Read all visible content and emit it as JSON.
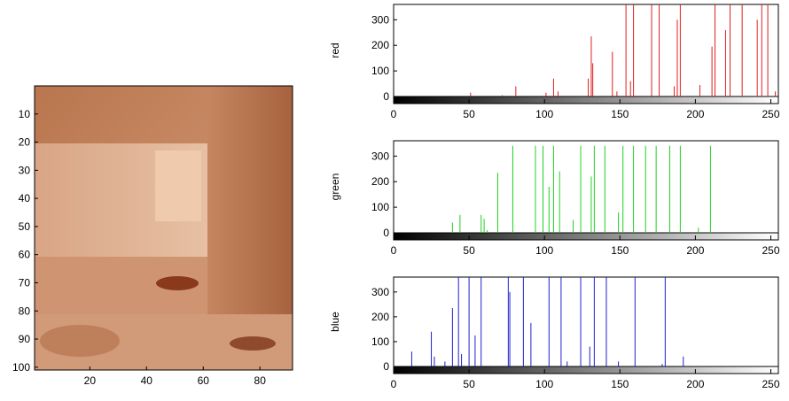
{
  "chart_data": [
    {
      "type": "image",
      "xlim": [
        0.5,
        91.5
      ],
      "ylim": [
        0,
        101
      ],
      "xticks": [
        20,
        40,
        60,
        80
      ],
      "yticks": [
        10,
        20,
        30,
        40,
        50,
        60,
        70,
        80,
        90,
        100
      ]
    },
    {
      "type": "bar",
      "ylabel": "red",
      "color": "#e02020",
      "xlim": [
        0,
        255
      ],
      "ylim": [
        0,
        360
      ],
      "xticks": [
        0,
        50,
        100,
        150,
        200,
        250
      ],
      "yticks": [
        0,
        100,
        200,
        300
      ],
      "x": [
        51,
        72,
        81,
        101,
        106,
        109,
        129,
        131,
        132,
        145,
        148,
        154,
        157,
        159,
        171,
        176,
        186,
        188,
        190,
        203,
        211,
        213,
        220,
        223,
        231,
        241,
        244,
        248,
        253
      ],
      "values": [
        15,
        5,
        40,
        15,
        70,
        20,
        70,
        235,
        130,
        175,
        20,
        360,
        60,
        360,
        360,
        360,
        40,
        300,
        360,
        45,
        195,
        360,
        260,
        360,
        360,
        300,
        360,
        360,
        20
      ]
    },
    {
      "type": "bar",
      "ylabel": "green",
      "color": "#20d020",
      "xlim": [
        0,
        255
      ],
      "ylim": [
        0,
        360
      ],
      "xticks": [
        0,
        50,
        100,
        150,
        200,
        250
      ],
      "yticks": [
        0,
        100,
        200,
        300
      ],
      "x": [
        39,
        44,
        58,
        60,
        62,
        69,
        79,
        94,
        99,
        103,
        106,
        110,
        119,
        124,
        131,
        133,
        140,
        149,
        152,
        159,
        167,
        174,
        183,
        190,
        202,
        210
      ],
      "values": [
        40,
        70,
        70,
        55,
        10,
        235,
        340,
        340,
        340,
        180,
        340,
        240,
        50,
        340,
        220,
        340,
        340,
        80,
        340,
        340,
        340,
        340,
        340,
        340,
        20,
        340
      ]
    },
    {
      "type": "bar",
      "ylabel": "blue",
      "color": "#2020d0",
      "xlim": [
        0,
        255
      ],
      "ylim": [
        0,
        360
      ],
      "xticks": [
        0,
        50,
        100,
        150,
        200,
        250
      ],
      "yticks": [
        0,
        100,
        200,
        300
      ],
      "x": [
        12,
        25,
        27,
        34,
        39,
        43,
        45,
        50,
        54,
        58,
        76,
        77,
        86,
        91,
        103,
        111,
        115,
        124,
        130,
        133,
        141,
        149,
        160,
        178,
        180,
        192
      ],
      "values": [
        60,
        140,
        40,
        20,
        235,
        360,
        50,
        360,
        125,
        360,
        360,
        300,
        360,
        175,
        360,
        360,
        20,
        360,
        80,
        360,
        360,
        20,
        360,
        10,
        360,
        40
      ]
    }
  ]
}
